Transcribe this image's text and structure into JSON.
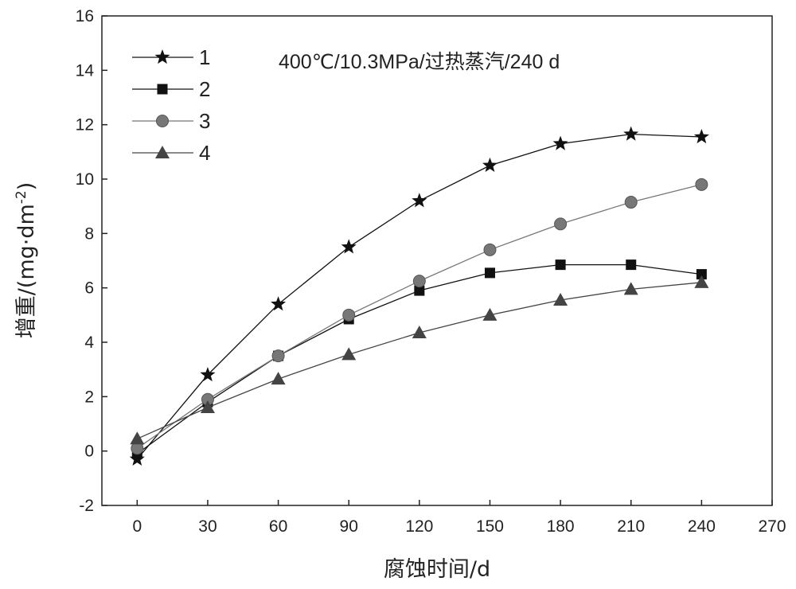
{
  "chart_data": {
    "type": "line",
    "title": "",
    "annotation": "400℃/10.3MPa/过热蒸汽/240 d",
    "xlabel": "腐蚀时间/d",
    "ylabel_main": "增重/(mg·dm",
    "ylabel_sup": "-2",
    "ylabel_close": ")",
    "xlim": [
      -15,
      270
    ],
    "ylim": [
      -2,
      16
    ],
    "xticks": [
      0,
      30,
      60,
      90,
      120,
      150,
      180,
      210,
      240,
      270
    ],
    "yticks": [
      -2,
      0,
      2,
      4,
      6,
      8,
      10,
      12,
      14,
      16
    ],
    "grid": false,
    "legend_position": "top-left",
    "x": [
      0,
      30,
      60,
      90,
      120,
      150,
      180,
      210,
      240
    ],
    "series": [
      {
        "name": "1",
        "marker": "star",
        "color": "#111111",
        "values": [
          -0.3,
          2.8,
          5.4,
          7.5,
          9.2,
          10.5,
          11.3,
          11.65,
          11.55
        ]
      },
      {
        "name": "2",
        "marker": "square",
        "color": "#111111",
        "values": [
          -0.1,
          1.8,
          3.5,
          4.85,
          5.9,
          6.55,
          6.85,
          6.85,
          6.5
        ]
      },
      {
        "name": "3",
        "marker": "circle",
        "color": "#777777",
        "values": [
          0.1,
          1.9,
          3.5,
          5.0,
          6.25,
          7.4,
          8.35,
          9.15,
          9.8
        ]
      },
      {
        "name": "4",
        "marker": "triangle",
        "color": "#444444",
        "values": [
          0.45,
          1.6,
          2.65,
          3.55,
          4.35,
          5.0,
          5.55,
          5.95,
          6.2
        ]
      }
    ]
  }
}
